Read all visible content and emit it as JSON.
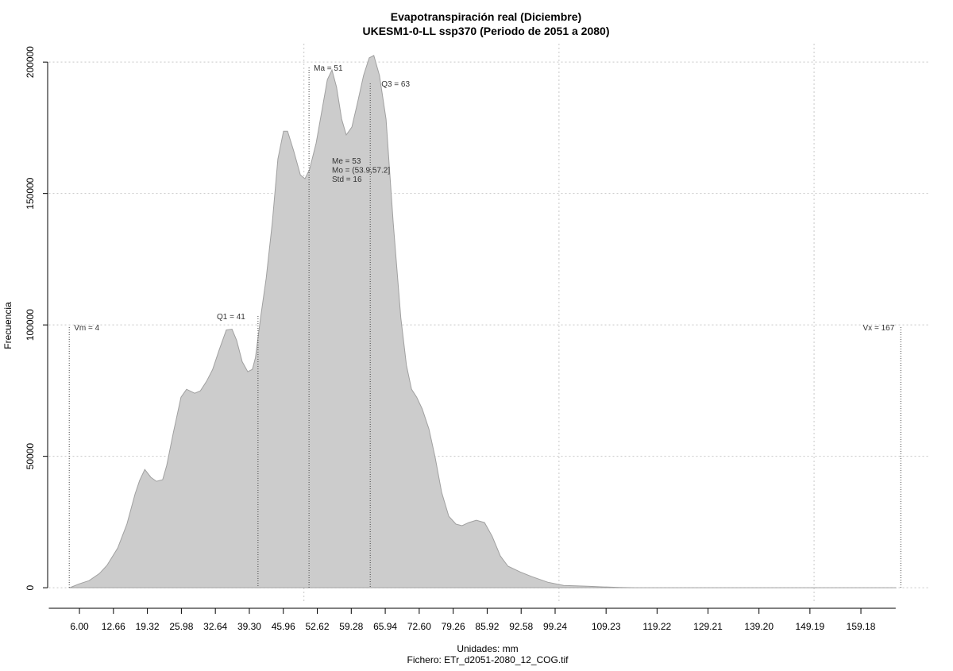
{
  "chart_data": {
    "type": "area",
    "title": "Evapotranspiración real (Diciembre)",
    "subtitle": "UKESM1-0-LL ssp370 (Periodo de 2051 a 2080)",
    "x_label": "Unidades: mm",
    "caption": "Fichero: ETr_d2051-2080_12_COG.tif",
    "y_label": "Frecuencia",
    "color": "#cccccc",
    "x": [
      4.1,
      6.0,
      7.9,
      9.9,
      11.4,
      13.5,
      15.3,
      16.9,
      17.8,
      18.8,
      20.0,
      21.1,
      22.3,
      23.1,
      24.4,
      25.9,
      27.0,
      28.6,
      29.7,
      30.9,
      32.1,
      33.4,
      34.8,
      35.9,
      36.8,
      37.9,
      39.0,
      39.9,
      40.5,
      41.5,
      42.6,
      43.8,
      44.9,
      46.0,
      46.8,
      48.0,
      49.3,
      50.2,
      51.1,
      52.4,
      53.5,
      54.6,
      55.5,
      56.4,
      57.4,
      58.3,
      59.4,
      60.5,
      61.7,
      62.8,
      63.7,
      64.8,
      66.1,
      67.5,
      69.0,
      70.1,
      71.1,
      72.1,
      73.2,
      74.5,
      75.7,
      77.0,
      78.4,
      79.8,
      81.0,
      82.3,
      83.8,
      85.4,
      86.9,
      88.5,
      90.0,
      92.4,
      94.7,
      97.8,
      100.9,
      105.6,
      108.7,
      111.8,
      114.9,
      166.0
    ],
    "values": [
      0,
      1500,
      2700,
      5400,
      8500,
      15100,
      24200,
      35700,
      40800,
      45000,
      42000,
      40500,
      41100,
      46500,
      58900,
      72500,
      75500,
      74000,
      74900,
      78500,
      83000,
      90600,
      98100,
      98400,
      94200,
      86000,
      82200,
      83100,
      87600,
      102700,
      117800,
      139000,
      163100,
      173700,
      173700,
      166200,
      157100,
      155600,
      159200,
      169200,
      181300,
      193300,
      197000,
      190400,
      178300,
      172300,
      175300,
      184400,
      194900,
      201600,
      202500,
      194900,
      178300,
      139000,
      102700,
      84600,
      75500,
      72500,
      68000,
      60400,
      49800,
      36300,
      27200,
      24200,
      23600,
      24800,
      25700,
      24800,
      19600,
      12100,
      8200,
      6000,
      4200,
      2100,
      900,
      600,
      300,
      100,
      0,
      0
    ],
    "xlim": [
      0,
      172.5
    ],
    "ylim": [
      -6000,
      207000
    ],
    "xticks": [
      {
        "value": 6,
        "label": "6.00"
      },
      12.66,
      19.32,
      25.98,
      32.64,
      {
        "value": 39.3,
        "label": "39.30"
      },
      45.96,
      52.62,
      59.28,
      65.94,
      {
        "value": 72.6,
        "label": "72.60"
      },
      79.26,
      85.92,
      92.58,
      99.24,
      109.23,
      119.22,
      129.21,
      {
        "value": 139.2,
        "label": "139.20"
      },
      149.19,
      159.18
    ],
    "yticks": [
      0,
      50000,
      100000,
      150000,
      200000
    ],
    "xgrid": [
      50,
      100,
      150
    ],
    "grid": true,
    "annotations": [
      {
        "text": "Vm = 4",
        "x": 4
      },
      {
        "text": "Q1 = 41",
        "x": 41
      },
      {
        "text": "Ma = 51",
        "x": 51
      },
      {
        "text": "Q3 = 63",
        "x": 63
      },
      {
        "text": "Vx = 167",
        "x": 167
      }
    ],
    "stats": [
      "Me = 53",
      "Mo = (53.9,57.2]",
      "Std = 16"
    ]
  }
}
